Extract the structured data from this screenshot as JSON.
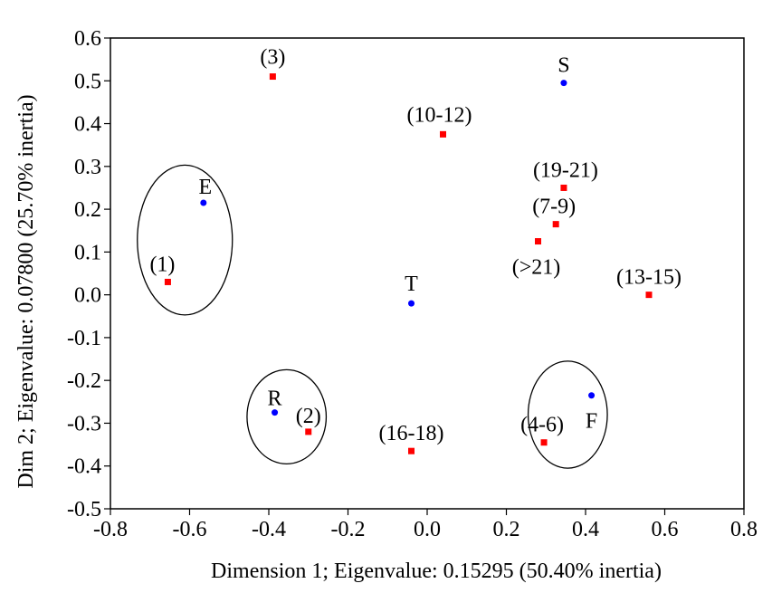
{
  "chart_data": {
    "type": "scatter",
    "title": "",
    "xlabel": "Dimension 1; Eigenvalue: 0.15295 (50.40% inertia)",
    "ylabel": "Dim 2; Eigenvalue: 0.07800 (25.70% inertia)",
    "xlim": [
      -0.8,
      0.8
    ],
    "ylim": [
      -0.5,
      0.6
    ],
    "x_ticks": [
      "-0.8",
      "-0.6",
      "-0.4",
      "-0.2",
      "0.0",
      "0.2",
      "0.4",
      "0.6",
      "0.8"
    ],
    "y_ticks": [
      "0.6",
      "0.5",
      "0.4",
      "0.3",
      "0.2",
      "0.1",
      "0.0",
      "-0.1",
      "-0.2",
      "-0.3",
      "-0.4",
      "-0.5"
    ],
    "grid": false,
    "legend": "none",
    "series": [
      {
        "color": "#ff0000",
        "marker": "square",
        "points": [
          {
            "label": "(3)",
            "x": -0.39,
            "y": 0.51
          },
          {
            "label": "(10-12)",
            "x": 0.04,
            "y": 0.375
          },
          {
            "label": "(19-21)",
            "x": 0.345,
            "y": 0.25
          },
          {
            "label": "(7-9)",
            "x": 0.325,
            "y": 0.165
          },
          {
            "label": "(>21)",
            "x": 0.28,
            "y": 0.125
          },
          {
            "label": "(13-15)",
            "x": 0.56,
            "y": 0.0
          },
          {
            "label": "(1)",
            "x": -0.655,
            "y": 0.03
          },
          {
            "label": "(2)",
            "x": -0.3,
            "y": -0.32
          },
          {
            "label": "(16-18)",
            "x": -0.04,
            "y": -0.365
          },
          {
            "label": "(4-6)",
            "x": 0.295,
            "y": -0.345
          }
        ]
      },
      {
        "color": "#0000ff",
        "marker": "circle",
        "points": [
          {
            "label": "S",
            "x": 0.345,
            "y": 0.495
          },
          {
            "label": "E",
            "x": -0.565,
            "y": 0.215
          },
          {
            "label": "T",
            "x": -0.04,
            "y": -0.02
          },
          {
            "label": "R",
            "x": -0.385,
            "y": -0.275
          },
          {
            "label": "F",
            "x": 0.415,
            "y": -0.235
          }
        ]
      }
    ],
    "annotations": [
      {
        "type": "ellipse",
        "cx": -0.612,
        "cy": 0.128,
        "rx": 0.12,
        "ry": 0.175
      },
      {
        "type": "ellipse",
        "cx": -0.355,
        "cy": -0.285,
        "rx": 0.1,
        "ry": 0.11
      },
      {
        "type": "ellipse",
        "cx": 0.355,
        "cy": -0.28,
        "rx": 0.1,
        "ry": 0.125
      }
    ]
  }
}
